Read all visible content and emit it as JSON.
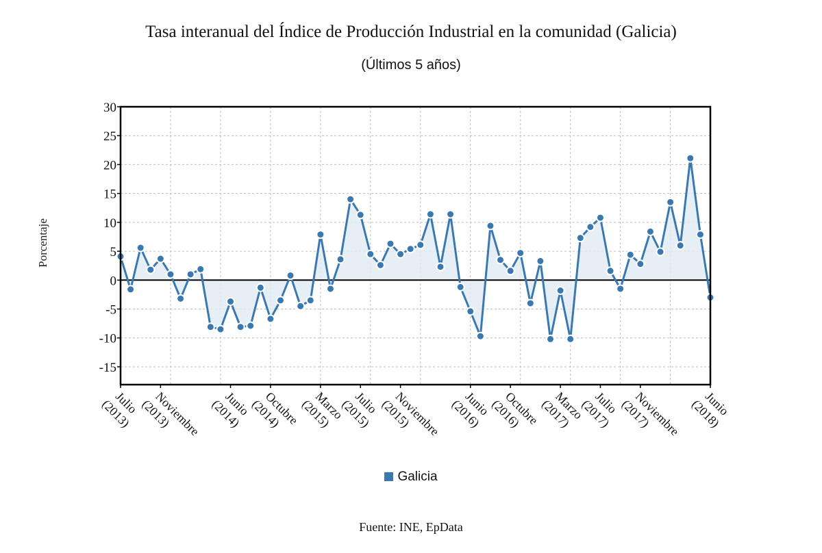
{
  "chart_data": {
    "type": "area",
    "title": "Tasa interanual del Índice de Producción Industrial en la comunidad (Galicia)",
    "subtitle": "(Últimos 5 años)",
    "xlabel": "",
    "ylabel": "Porcentaje",
    "ylim": [
      -18,
      30
    ],
    "yticks": [
      30,
      25,
      20,
      15,
      10,
      5,
      0,
      -5,
      -10,
      -15
    ],
    "grid": true,
    "legend_position": "bottom-center",
    "source": "Fuente: INE, EpData",
    "color": "#3a78b0",
    "fill_color": "#e3ecf5",
    "x": [
      "2013-07",
      "2013-08",
      "2013-09",
      "2013-10",
      "2013-11",
      "2013-12",
      "2014-01",
      "2014-02",
      "2014-03",
      "2014-04",
      "2014-05",
      "2014-06",
      "2014-07",
      "2014-08",
      "2014-09",
      "2014-10",
      "2014-11",
      "2014-12",
      "2015-01",
      "2015-02",
      "2015-03",
      "2015-04",
      "2015-05",
      "2015-06",
      "2015-07",
      "2015-08",
      "2015-09",
      "2015-10",
      "2015-11",
      "2015-12",
      "2016-01",
      "2016-02",
      "2016-03",
      "2016-04",
      "2016-05",
      "2016-06",
      "2016-07",
      "2016-08",
      "2016-09",
      "2016-10",
      "2016-11",
      "2016-12",
      "2017-01",
      "2017-02",
      "2017-03",
      "2017-04",
      "2017-05",
      "2017-06",
      "2017-07",
      "2017-08",
      "2017-09",
      "2017-10",
      "2017-11",
      "2017-12",
      "2018-01",
      "2018-02",
      "2018-03",
      "2018-04",
      "2018-05",
      "2018-06"
    ],
    "tick_labels": [
      {
        "index": 0,
        "line1": "Julio",
        "line2": "(2013)"
      },
      {
        "index": 4,
        "line1": "Noviembre",
        "line2": "(2013)"
      },
      {
        "index": 11,
        "line1": "Junio",
        "line2": "(2014)"
      },
      {
        "index": 15,
        "line1": "Octubre",
        "line2": "(2014)"
      },
      {
        "index": 20,
        "line1": "Marzo",
        "line2": "(2015)"
      },
      {
        "index": 24,
        "line1": "Julio",
        "line2": "(2015)"
      },
      {
        "index": 28,
        "line1": "Noviembre",
        "line2": "(2015)"
      },
      {
        "index": 35,
        "line1": "Junio",
        "line2": "(2016)"
      },
      {
        "index": 39,
        "line1": "Octubre",
        "line2": "(2016)"
      },
      {
        "index": 44,
        "line1": "Marzo",
        "line2": "(2017)"
      },
      {
        "index": 48,
        "line1": "Julio",
        "line2": "(2017)"
      },
      {
        "index": 52,
        "line1": "Noviembre",
        "line2": "(2017)"
      },
      {
        "index": 59,
        "line1": "Junio",
        "line2": "(2018)"
      }
    ],
    "series": [
      {
        "name": "Galicia",
        "values": [
          4.1,
          -1.6,
          5.6,
          1.8,
          3.7,
          1.0,
          -3.2,
          1.0,
          1.9,
          -8.1,
          -8.5,
          -3.7,
          -8.1,
          -7.9,
          -1.3,
          -6.7,
          -3.5,
          0.8,
          -4.5,
          -3.5,
          7.9,
          -1.5,
          3.6,
          14.0,
          11.3,
          4.5,
          2.6,
          6.3,
          4.5,
          5.4,
          6.1,
          11.4,
          2.3,
          11.4,
          -1.2,
          -5.4,
          -9.7,
          9.4,
          3.5,
          1.6,
          4.7,
          -4.0,
          3.3,
          -10.2,
          -1.8,
          -10.2,
          7.3,
          9.2,
          10.8,
          1.6,
          -1.5,
          4.4,
          2.8,
          8.4,
          4.9,
          13.5,
          6.0,
          21.1,
          7.9,
          -3.0
        ]
      }
    ]
  }
}
